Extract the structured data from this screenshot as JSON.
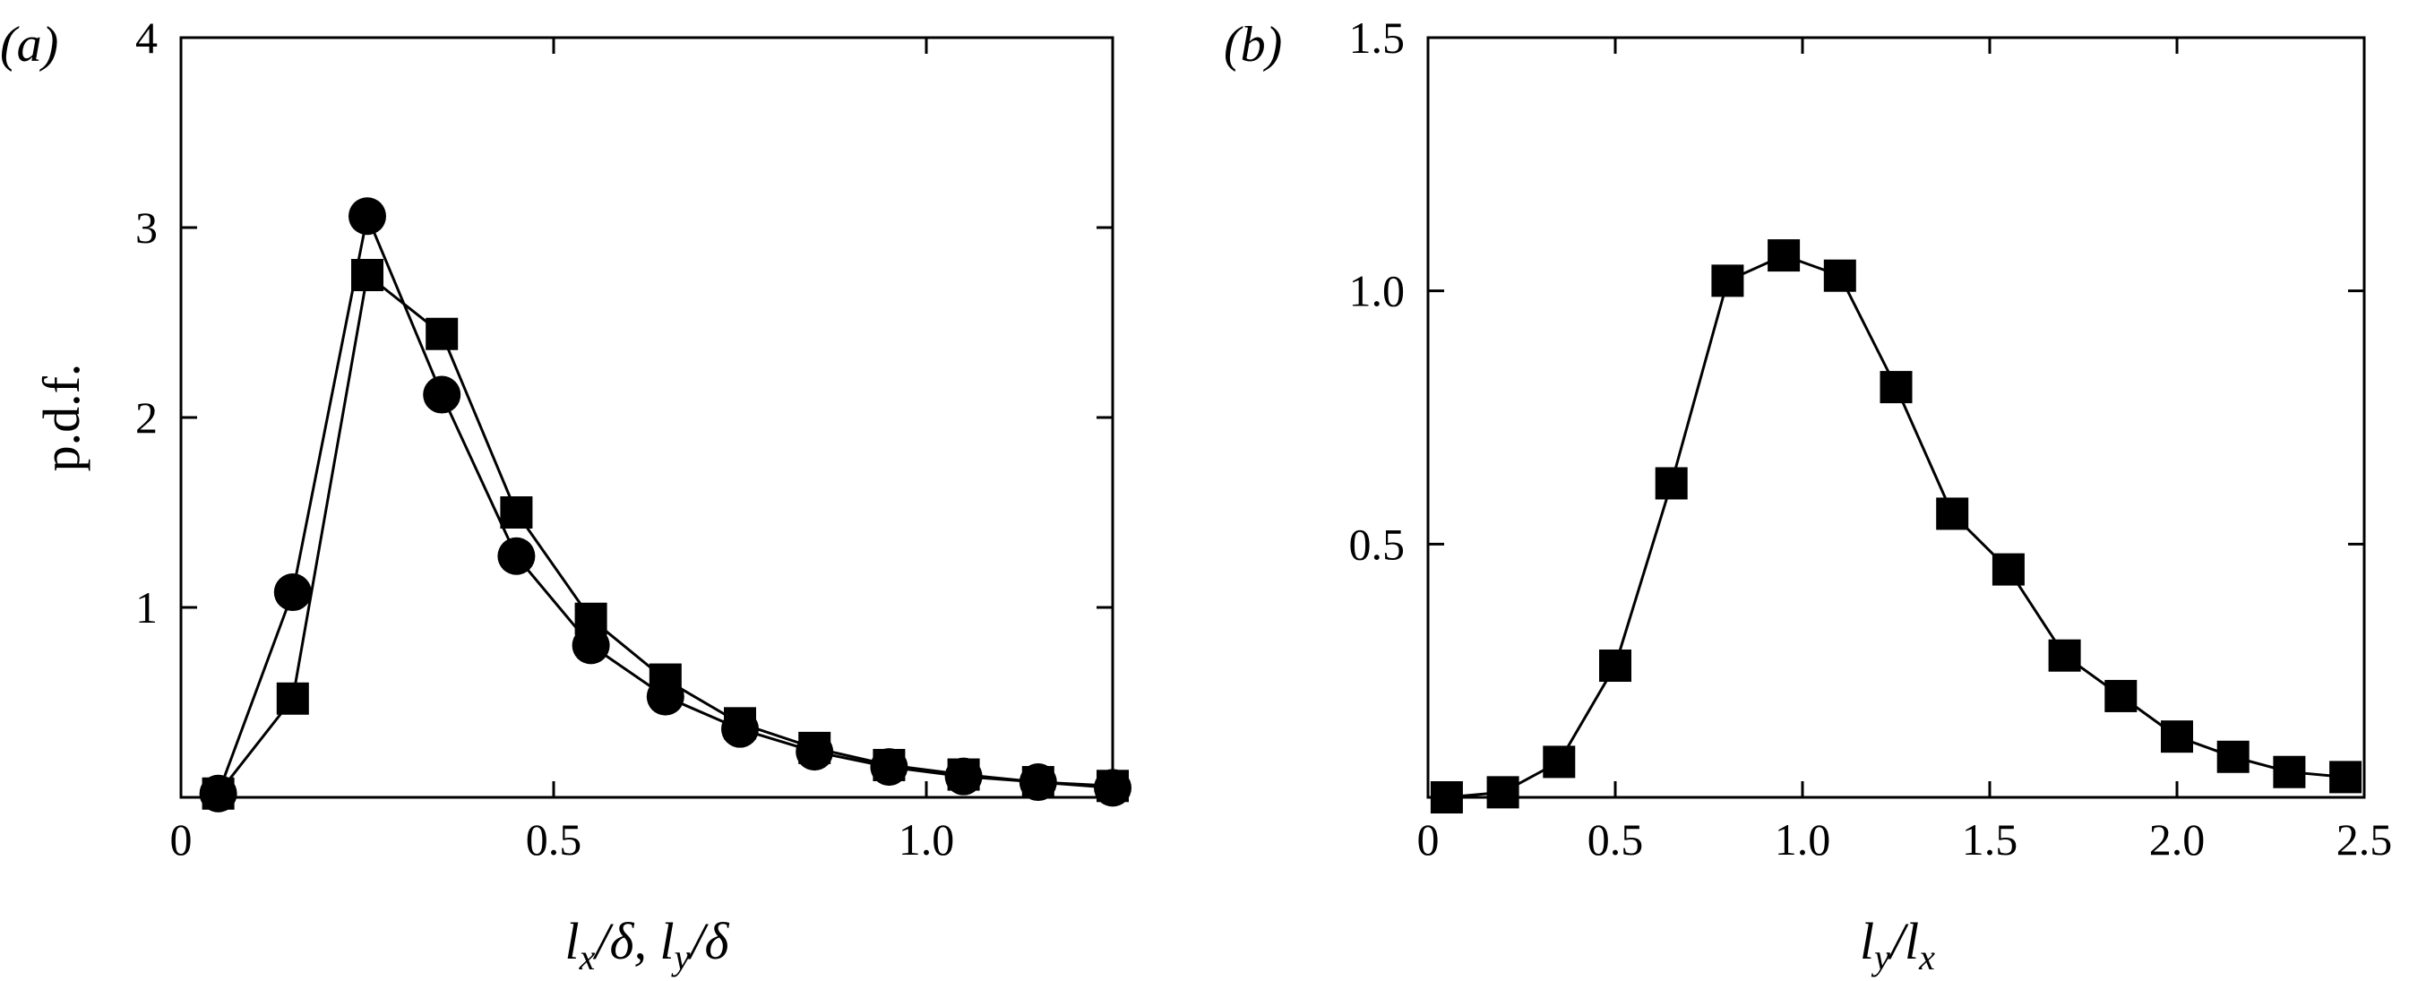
{
  "chart_data": [
    {
      "type": "line",
      "panel_label": "(a)",
      "xlabel": "l_x/δ, l_y/δ",
      "ylabel": "p.d.f.",
      "xlim": [
        0,
        1.25
      ],
      "ylim": [
        0,
        4
      ],
      "xticks": [
        0,
        0.5,
        1.0
      ],
      "xtick_labels": [
        "0",
        "0.5",
        "1.0"
      ],
      "yticks": [
        1,
        2,
        3,
        4
      ],
      "ytick_labels": [
        "1",
        "2",
        "3",
        "4"
      ],
      "grid": false,
      "series": [
        {
          "marker": "circle",
          "x": [
            0.05,
            0.15,
            0.25,
            0.35,
            0.45,
            0.55,
            0.65,
            0.75,
            0.85,
            0.95,
            1.05,
            1.15,
            1.25
          ],
          "y": [
            0.02,
            1.08,
            3.06,
            2.12,
            1.27,
            0.8,
            0.53,
            0.36,
            0.24,
            0.16,
            0.11,
            0.08,
            0.05
          ]
        },
        {
          "marker": "square",
          "x": [
            0.05,
            0.15,
            0.25,
            0.35,
            0.45,
            0.55,
            0.65,
            0.75,
            0.85,
            0.95,
            1.05,
            1.15,
            1.25
          ],
          "y": [
            0.02,
            0.52,
            2.75,
            2.44,
            1.5,
            0.94,
            0.62,
            0.39,
            0.26,
            0.17,
            0.12,
            0.08,
            0.06
          ]
        }
      ]
    },
    {
      "type": "line",
      "panel_label": "(b)",
      "xlabel": "l_y/l_x",
      "ylabel": "",
      "xlim": [
        0,
        2.5
      ],
      "ylim": [
        0,
        1.5
      ],
      "xticks": [
        0,
        0.5,
        1.0,
        1.5,
        2.0,
        2.5
      ],
      "xtick_labels": [
        "0",
        "0.5",
        "1.0",
        "1.5",
        "2.0",
        "2.5"
      ],
      "yticks": [
        0.5,
        1.0,
        1.5
      ],
      "ytick_labels": [
        "0.5",
        "1.0",
        "1.5"
      ],
      "grid": false,
      "series": [
        {
          "marker": "square",
          "x": [
            0.05,
            0.2,
            0.35,
            0.5,
            0.65,
            0.8,
            0.95,
            1.1,
            1.25,
            1.4,
            1.55,
            1.7,
            1.85,
            2.0,
            2.15,
            2.3,
            2.45
          ],
          "y": [
            0.0,
            0.01,
            0.07,
            0.26,
            0.62,
            1.02,
            1.07,
            1.03,
            0.81,
            0.56,
            0.45,
            0.28,
            0.2,
            0.12,
            0.08,
            0.05,
            0.04
          ]
        }
      ]
    }
  ]
}
